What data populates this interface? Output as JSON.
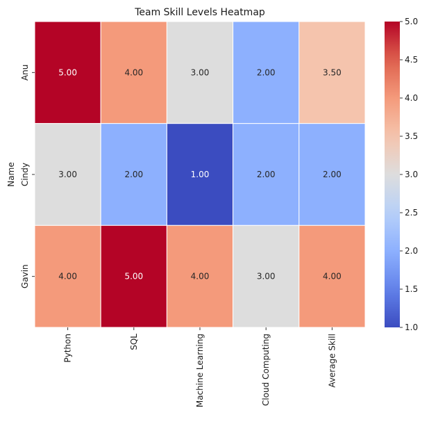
{
  "chart_data": {
    "type": "heatmap",
    "title": "Team Skill Levels Heatmap",
    "ylabel": "Name",
    "xlabel": "",
    "rows": [
      "Anu",
      "Cindy",
      "Gavin"
    ],
    "columns": [
      "Python",
      "SQL",
      "Machine Learning",
      "Cloud Computing",
      "Average Skill"
    ],
    "values": [
      [
        5.0,
        4.0,
        3.0,
        2.0,
        3.5
      ],
      [
        3.0,
        2.0,
        1.0,
        2.0,
        2.0
      ],
      [
        4.0,
        5.0,
        4.0,
        3.0,
        4.0
      ]
    ],
    "cell_labels": [
      [
        "5.00",
        "4.00",
        "3.00",
        "2.00",
        "3.50"
      ],
      [
        "3.00",
        "2.00",
        "1.00",
        "2.00",
        "2.00"
      ],
      [
        "4.00",
        "5.00",
        "4.00",
        "3.00",
        "4.00"
      ]
    ],
    "colormap": "coolwarm",
    "colorbar": {
      "range": [
        1.0,
        5.0
      ],
      "ticks": [
        "1.0",
        "1.5",
        "2.0",
        "2.5",
        "3.0",
        "3.5",
        "4.0",
        "4.5",
        "5.0"
      ]
    },
    "colors": {
      "low": "#3b4cc0",
      "mid": "#dddddd",
      "high": "#b40426",
      "cell_border": "#ffffff"
    }
  }
}
